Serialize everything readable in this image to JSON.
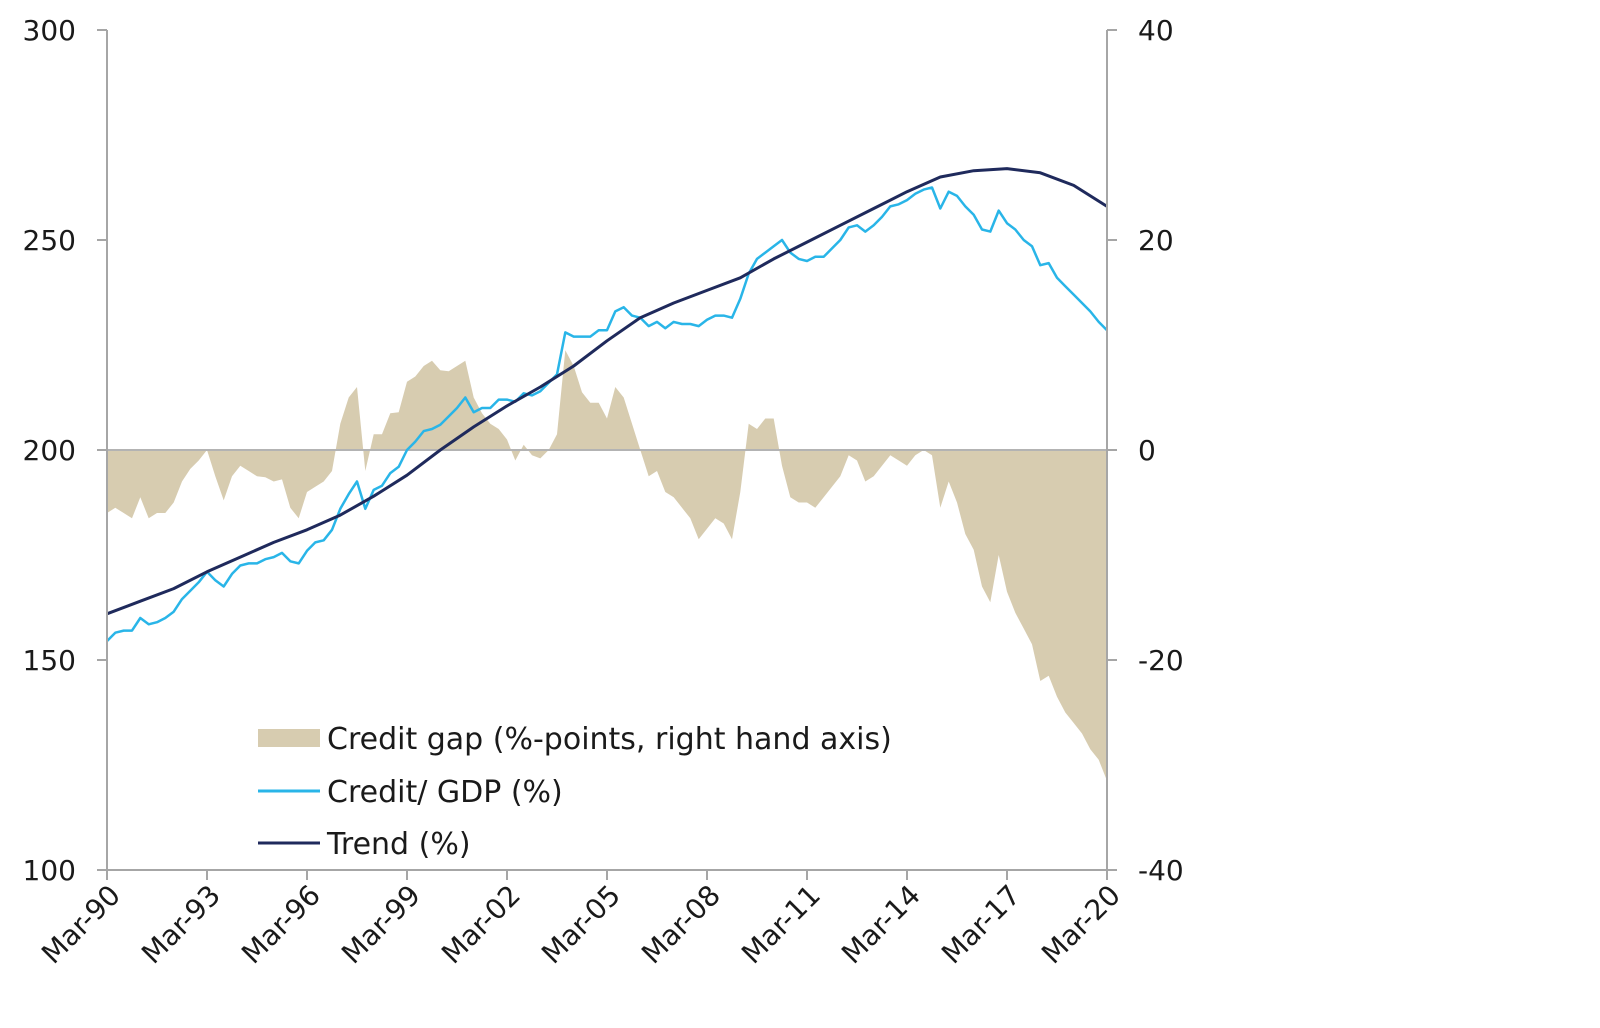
{
  "chart_data": {
    "type": "line",
    "title": "",
    "xlabel": "",
    "ylabel": "",
    "y2label": "",
    "ylim": [
      100,
      300
    ],
    "y2lim": [
      -40,
      40
    ],
    "yticks": [
      "300",
      "250",
      "200",
      "150",
      "100"
    ],
    "y2ticks": [
      "40",
      "20",
      "0",
      "-20",
      "-40"
    ],
    "xlim": [
      1990.0,
      2020.0
    ],
    "xticks": [
      "Mar-90",
      "Mar-93",
      "Mar-96",
      "Mar-99",
      "Mar-02",
      "Mar-05",
      "Mar-08",
      "Mar-11",
      "Mar-14",
      "Mar-17",
      "Mar-20"
    ],
    "legend_position": "lower-left",
    "series": [
      {
        "name": "Credit gap (%-points, right hand axis)",
        "type": "area",
        "axis": "right",
        "color": "#d7ccb0",
        "x": [
          1990.0,
          1990.25,
          1990.5,
          1990.75,
          1991.0,
          1991.25,
          1991.5,
          1991.75,
          1992.0,
          1992.25,
          1992.5,
          1992.75,
          1993.0,
          1993.25,
          1993.5,
          1993.75,
          1994.0,
          1994.25,
          1994.5,
          1994.75,
          1995.0,
          1995.25,
          1995.5,
          1995.75,
          1996.0,
          1996.25,
          1996.5,
          1996.75,
          1997.0,
          1997.25,
          1997.5,
          1997.75,
          1998.0,
          1998.25,
          1998.5,
          1998.75,
          1999.0,
          1999.25,
          1999.5,
          1999.75,
          2000.0,
          2000.25,
          2000.5,
          2000.75,
          2001.0,
          2001.25,
          2001.5,
          2001.75,
          2002.0,
          2002.25,
          2002.5,
          2002.75,
          2003.0,
          2003.25,
          2003.5,
          2003.75,
          2004.0,
          2004.25,
          2004.5,
          2004.75,
          2005.0,
          2005.25,
          2005.5,
          2005.75,
          2006.0,
          2006.25,
          2006.5,
          2006.75,
          2007.0,
          2007.25,
          2007.5,
          2007.75,
          2008.0,
          2008.25,
          2008.5,
          2008.75,
          2009.0,
          2009.25,
          2009.5,
          2009.75,
          2010.0,
          2010.25,
          2010.5,
          2010.75,
          2011.0,
          2011.25,
          2011.5,
          2011.75,
          2012.0,
          2012.25,
          2012.5,
          2012.75,
          2013.0,
          2013.25,
          2013.5,
          2013.75,
          2014.0,
          2014.25,
          2014.5,
          2014.75,
          2015.0,
          2015.25,
          2015.5,
          2015.75,
          2016.0,
          2016.25,
          2016.5,
          2016.75,
          2017.0,
          2017.25,
          2017.5,
          2017.75,
          2018.0,
          2018.25,
          2018.5,
          2018.75,
          2019.0,
          2019.25,
          2019.5,
          2019.75,
          2020.0
        ],
        "values": [
          -6.0,
          -5.5,
          -6.0,
          -6.5,
          -4.5,
          -6.5,
          -6.0,
          -6.0,
          -5.0,
          -3.0,
          -1.8,
          -1.0,
          0.0,
          -2.5,
          -4.8,
          -2.5,
          -1.5,
          -2.0,
          -2.5,
          -2.6,
          -3.0,
          -2.8,
          -5.5,
          -6.5,
          -4.0,
          -3.5,
          -3.0,
          -2.0,
          2.5,
          5.0,
          6.0,
          -2.0,
          1.5,
          1.5,
          3.5,
          3.6,
          6.5,
          7.0,
          8.0,
          8.5,
          7.6,
          7.5,
          8.0,
          8.5,
          5.0,
          3.5,
          2.5,
          2.0,
          1.0,
          -1.0,
          0.5,
          -0.5,
          -0.8,
          0.0,
          1.5,
          9.5,
          8.0,
          5.5,
          4.5,
          4.5,
          3.0,
          6.0,
          5.0,
          2.5,
          0.0,
          -2.5,
          -2.0,
          -4.0,
          -4.5,
          -5.5,
          -6.5,
          -8.5,
          -7.5,
          -6.5,
          -7.0,
          -8.5,
          -4.0,
          2.5,
          2.0,
          3.0,
          3.0,
          -1.5,
          -4.5,
          -5.0,
          -5.0,
          -5.5,
          -4.5,
          -3.5,
          -2.5,
          -0.5,
          -1.0,
          -3.0,
          -2.5,
          -1.5,
          -0.5,
          -1.0,
          -1.5,
          -0.5,
          0.0,
          -0.5,
          -5.5,
          -3.0,
          -5.0,
          -8.0,
          -9.5,
          -13.0,
          -14.5,
          -10.0,
          -13.5,
          -15.5,
          -17.0,
          -18.5,
          -22.0,
          -21.5,
          -23.5,
          -25.0,
          -26.0,
          -27.0,
          -28.5,
          -29.5,
          -31.5
        ]
      },
      {
        "name": "Credit/ GDP (%)",
        "type": "line",
        "axis": "left",
        "color": "#29b5e8",
        "x": [
          1990.0,
          1990.25,
          1990.5,
          1990.75,
          1991.0,
          1991.25,
          1991.5,
          1991.75,
          1992.0,
          1992.25,
          1992.5,
          1992.75,
          1993.0,
          1993.25,
          1993.5,
          1993.75,
          1994.0,
          1994.25,
          1994.5,
          1994.75,
          1995.0,
          1995.25,
          1995.5,
          1995.75,
          1996.0,
          1996.25,
          1996.5,
          1996.75,
          1997.0,
          1997.25,
          1997.5,
          1997.75,
          1998.0,
          1998.25,
          1998.5,
          1998.75,
          1999.0,
          1999.25,
          1999.5,
          1999.75,
          2000.0,
          2000.25,
          2000.5,
          2000.75,
          2001.0,
          2001.25,
          2001.5,
          2001.75,
          2002.0,
          2002.25,
          2002.5,
          2002.75,
          2003.0,
          2003.25,
          2003.5,
          2003.75,
          2004.0,
          2004.25,
          2004.5,
          2004.75,
          2005.0,
          2005.25,
          2005.5,
          2005.75,
          2006.0,
          2006.25,
          2006.5,
          2006.75,
          2007.0,
          2007.25,
          2007.5,
          2007.75,
          2008.0,
          2008.25,
          2008.5,
          2008.75,
          2009.0,
          2009.25,
          2009.5,
          2009.75,
          2010.0,
          2010.25,
          2010.5,
          2010.75,
          2011.0,
          2011.25,
          2011.5,
          2011.75,
          2012.0,
          2012.25,
          2012.5,
          2012.75,
          2013.0,
          2013.25,
          2013.5,
          2013.75,
          2014.0,
          2014.25,
          2014.5,
          2014.75,
          2015.0,
          2015.25,
          2015.5,
          2015.75,
          2016.0,
          2016.25,
          2016.5,
          2016.75,
          2017.0,
          2017.25,
          2017.5,
          2017.75,
          2018.0,
          2018.25,
          2018.5,
          2018.75,
          2019.0,
          2019.25,
          2019.5,
          2019.75,
          2020.0
        ],
        "values": [
          154.5,
          156.5,
          157.0,
          157.0,
          160.0,
          158.5,
          159.0,
          160.0,
          161.5,
          164.5,
          166.5,
          168.5,
          171.0,
          169.0,
          167.5,
          170.5,
          172.5,
          173.0,
          173.0,
          174.0,
          174.5,
          175.5,
          173.5,
          173.0,
          176.0,
          178.0,
          178.5,
          181.0,
          186.0,
          189.5,
          192.5,
          186.0,
          190.5,
          191.5,
          194.5,
          196.0,
          200.0,
          202.0,
          204.5,
          205.0,
          206.0,
          208.0,
          210.0,
          212.5,
          209.0,
          210.0,
          210.0,
          212.0,
          212.0,
          211.5,
          213.5,
          213.0,
          214.0,
          216.0,
          218.0,
          228.0,
          227.0,
          227.0,
          227.0,
          228.5,
          228.5,
          233.0,
          234.0,
          232.0,
          231.5,
          229.5,
          230.5,
          229.0,
          230.5,
          230.0,
          230.0,
          229.5,
          231.0,
          232.0,
          232.0,
          231.5,
          236.0,
          242.0,
          245.5,
          247.0,
          248.5,
          250.0,
          247.0,
          245.5,
          245.0,
          246.0,
          246.0,
          248.0,
          250.0,
          253.0,
          253.5,
          252.0,
          253.5,
          255.5,
          258.0,
          258.5,
          259.5,
          261.0,
          262.0,
          262.5,
          257.5,
          261.5,
          260.5,
          258.0,
          256.0,
          252.5,
          252.0,
          257.0,
          254.0,
          252.5,
          250.0,
          248.5,
          244.0,
          244.5,
          241.0,
          239.0,
          237.0,
          235.0,
          233.0,
          230.5,
          228.5
        ]
      },
      {
        "name": "Trend (%)",
        "type": "line",
        "axis": "left",
        "color": "#1f2a5c",
        "x": [
          1990.0,
          1991.0,
          1992.0,
          1993.0,
          1994.0,
          1995.0,
          1996.0,
          1997.0,
          1998.0,
          1999.0,
          2000.0,
          2001.0,
          2002.0,
          2003.0,
          2004.0,
          2005.0,
          2006.0,
          2007.0,
          2008.0,
          2009.0,
          2010.0,
          2011.0,
          2012.0,
          2013.0,
          2014.0,
          2015.0,
          2016.0,
          2017.0,
          2018.0,
          2019.0,
          2020.0
        ],
        "values": [
          161.0,
          164.0,
          167.0,
          171.0,
          174.5,
          178.0,
          181.0,
          184.5,
          189.0,
          194.0,
          200.0,
          205.5,
          210.5,
          215.0,
          220.0,
          226.0,
          231.5,
          235.0,
          238.0,
          241.0,
          245.5,
          249.5,
          253.5,
          257.5,
          261.5,
          265.0,
          266.5,
          267.0,
          266.0,
          263.0,
          258.0
        ]
      }
    ]
  }
}
